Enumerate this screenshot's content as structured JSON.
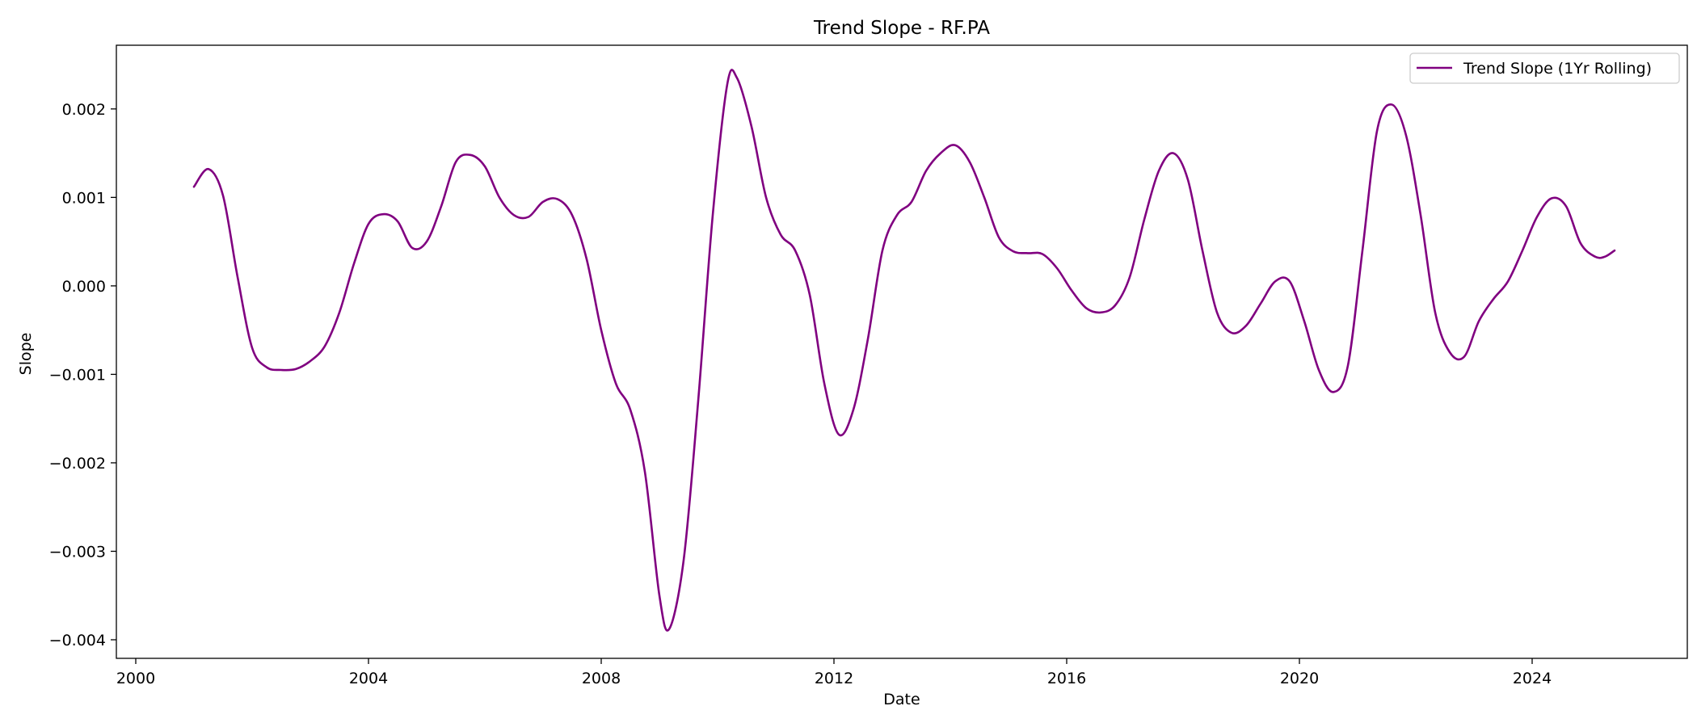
{
  "chart_data": {
    "type": "line",
    "title": "Trend Slope - RF.PA",
    "xlabel": "Date",
    "ylabel": "Slope",
    "xlim": [
      "1999-09-01",
      "2026-09-01"
    ],
    "ylim": [
      -0.00421,
      0.00272
    ],
    "x_ticks": [
      "2000",
      "2004",
      "2008",
      "2012",
      "2016",
      "2020",
      "2024"
    ],
    "y_ticks": [
      {
        "value": -0.004,
        "label": "−0.004"
      },
      {
        "value": -0.003,
        "label": "−0.003"
      },
      {
        "value": -0.002,
        "label": "−0.002"
      },
      {
        "value": -0.001,
        "label": "−0.001"
      },
      {
        "value": 0.0,
        "label": "0.000"
      },
      {
        "value": 0.001,
        "label": "0.001"
      },
      {
        "value": 0.002,
        "label": "0.002"
      }
    ],
    "grid": false,
    "legend": {
      "position": "upper-right",
      "entries": [
        "Trend Slope (1Yr Rolling)"
      ]
    },
    "series": [
      {
        "name": "Trend Slope (1Yr Rolling)",
        "color": "#800080",
        "points": [
          [
            "2001-01-01",
            0.00112
          ],
          [
            "2001-04-01",
            0.00132
          ],
          [
            "2001-07-01",
            0.00102
          ],
          [
            "2001-10-01",
            0.0001
          ],
          [
            "2002-01-01",
            -0.0007
          ],
          [
            "2002-04-01",
            -0.00092
          ],
          [
            "2002-07-01",
            -0.00095
          ],
          [
            "2002-10-01",
            -0.00094
          ],
          [
            "2003-01-01",
            -0.00085
          ],
          [
            "2003-04-01",
            -0.00068
          ],
          [
            "2003-07-01",
            -0.0003
          ],
          [
            "2003-10-01",
            0.00025
          ],
          [
            "2004-01-01",
            0.0007
          ],
          [
            "2004-04-01",
            0.00081
          ],
          [
            "2004-07-01",
            0.00073
          ],
          [
            "2004-10-01",
            0.00043
          ],
          [
            "2005-01-01",
            0.0005
          ],
          [
            "2005-04-01",
            0.0009
          ],
          [
            "2005-07-01",
            0.0014
          ],
          [
            "2005-10-01",
            0.00148
          ],
          [
            "2006-01-01",
            0.00135
          ],
          [
            "2006-04-01",
            0.001
          ],
          [
            "2006-07-01",
            0.0008
          ],
          [
            "2006-10-01",
            0.00078
          ],
          [
            "2007-01-01",
            0.00095
          ],
          [
            "2007-04-01",
            0.00098
          ],
          [
            "2007-07-01",
            0.0008
          ],
          [
            "2007-10-01",
            0.0003
          ],
          [
            "2008-01-01",
            -0.0005
          ],
          [
            "2008-04-01",
            -0.0011
          ],
          [
            "2008-07-01",
            -0.0014
          ],
          [
            "2008-10-01",
            -0.0021
          ],
          [
            "2009-01-01",
            -0.0035
          ],
          [
            "2009-03-01",
            -0.00388
          ],
          [
            "2009-06-01",
            -0.0031
          ],
          [
            "2009-09-01",
            -0.0013
          ],
          [
            "2009-12-01",
            0.0008
          ],
          [
            "2010-03-01",
            0.00228
          ],
          [
            "2010-05-01",
            0.00235
          ],
          [
            "2010-08-01",
            0.0018
          ],
          [
            "2010-11-01",
            0.001
          ],
          [
            "2011-02-01",
            0.00058
          ],
          [
            "2011-05-01",
            0.0004
          ],
          [
            "2011-08-01",
            -0.0001
          ],
          [
            "2011-11-01",
            -0.0011
          ],
          [
            "2012-02-01",
            -0.00168
          ],
          [
            "2012-05-01",
            -0.0014
          ],
          [
            "2012-08-01",
            -0.0006
          ],
          [
            "2012-11-01",
            0.0004
          ],
          [
            "2013-02-01",
            0.0008
          ],
          [
            "2013-05-01",
            0.00095
          ],
          [
            "2013-08-01",
            0.0013
          ],
          [
            "2013-11-01",
            0.0015
          ],
          [
            "2014-02-01",
            0.00159
          ],
          [
            "2014-05-01",
            0.0014
          ],
          [
            "2014-08-01",
            0.001
          ],
          [
            "2014-11-01",
            0.00055
          ],
          [
            "2015-02-01",
            0.00039
          ],
          [
            "2015-05-01",
            0.00037
          ],
          [
            "2015-08-01",
            0.00036
          ],
          [
            "2015-11-01",
            0.0002
          ],
          [
            "2016-02-01",
            -5e-05
          ],
          [
            "2016-05-01",
            -0.00025
          ],
          [
            "2016-08-01",
            -0.0003
          ],
          [
            "2016-11-01",
            -0.00022
          ],
          [
            "2017-02-01",
            0.0001
          ],
          [
            "2017-05-01",
            0.00075
          ],
          [
            "2017-08-01",
            0.0013
          ],
          [
            "2017-11-01",
            0.0015
          ],
          [
            "2018-02-01",
            0.0012
          ],
          [
            "2018-05-01",
            0.0004
          ],
          [
            "2018-08-01",
            -0.0003
          ],
          [
            "2018-11-01",
            -0.00053
          ],
          [
            "2019-02-01",
            -0.00045
          ],
          [
            "2019-05-01",
            -0.0002
          ],
          [
            "2019-08-01",
            5e-05
          ],
          [
            "2019-11-01",
            5e-05
          ],
          [
            "2020-02-01",
            -0.0004
          ],
          [
            "2020-05-01",
            -0.00095
          ],
          [
            "2020-08-01",
            -0.0012
          ],
          [
            "2020-11-01",
            -0.0009
          ],
          [
            "2021-02-01",
            0.0004
          ],
          [
            "2021-05-01",
            0.00175
          ],
          [
            "2021-08-01",
            0.00205
          ],
          [
            "2021-11-01",
            0.0017
          ],
          [
            "2022-02-01",
            0.0008
          ],
          [
            "2022-05-01",
            -0.0003
          ],
          [
            "2022-08-01",
            -0.00075
          ],
          [
            "2022-11-01",
            -0.0008
          ],
          [
            "2023-02-01",
            -0.0004
          ],
          [
            "2023-05-01",
            -0.00015
          ],
          [
            "2023-08-01",
            5e-05
          ],
          [
            "2023-11-01",
            0.0004
          ],
          [
            "2024-02-01",
            0.00078
          ],
          [
            "2024-05-01",
            0.00099
          ],
          [
            "2024-08-01",
            0.0009
          ],
          [
            "2024-11-01",
            0.00048
          ],
          [
            "2025-02-01",
            0.00033
          ],
          [
            "2025-04-01",
            0.00033
          ],
          [
            "2025-06-01",
            0.0004
          ]
        ]
      }
    ]
  }
}
